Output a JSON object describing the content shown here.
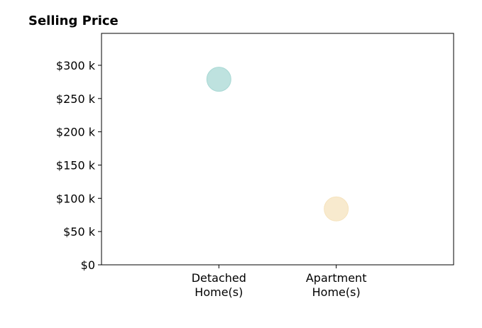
{
  "chart_data": {
    "type": "scatter",
    "title": "Selling Price",
    "xlabel": "",
    "ylabel": "",
    "categories": [
      [
        "Detached",
        "Home(s)"
      ],
      [
        "Apartment",
        "Home(s)"
      ]
    ],
    "points": [
      {
        "category_index": 0,
        "value": 279000,
        "color": "#a8d8d4"
      },
      {
        "category_index": 1,
        "value": 84000,
        "color": "#f6e3be"
      }
    ],
    "y_ticks": [
      {
        "value": 0,
        "label": "$0"
      },
      {
        "value": 50000,
        "label": "$50 k"
      },
      {
        "value": 100000,
        "label": "$100 k"
      },
      {
        "value": 150000,
        "label": "$150 k"
      },
      {
        "value": 200000,
        "label": "$200 k"
      },
      {
        "value": 250000,
        "label": "$250 k"
      },
      {
        "value": 300000,
        "label": "$300 k"
      }
    ],
    "ylim": [
      0,
      348000
    ],
    "xlim": [
      -1,
      2
    ],
    "grid": false,
    "legend": "none"
  }
}
